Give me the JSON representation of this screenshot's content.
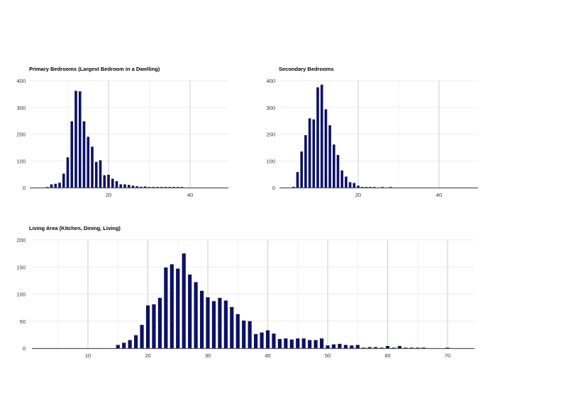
{
  "page": {
    "background": "#ffffff",
    "bar_color": "#0b1166",
    "grid_color": "#e6e6e6",
    "major_grid_color": "#cccccc",
    "axis_color": "#555555"
  },
  "chart_data": [
    {
      "id": "primary",
      "type": "bar",
      "title": "Primary Bedrooms (Largest Bedroom in a Dwelling)",
      "xlabel": "",
      "ylabel": "",
      "ylim": [
        0,
        400
      ],
      "xlim": [
        0,
        49
      ],
      "yticks": [
        0,
        100,
        200,
        300,
        400
      ],
      "xticks": [
        20,
        40
      ],
      "grid": true,
      "legend": "none",
      "x": [
        5,
        6,
        7,
        8,
        9,
        10,
        11,
        12,
        13,
        14,
        15,
        16,
        17,
        18,
        19,
        20,
        21,
        22,
        23,
        24,
        25,
        26,
        27,
        28,
        29,
        30,
        31,
        32,
        33,
        34,
        35,
        36,
        37,
        38
      ],
      "values": [
        1,
        12,
        14,
        18,
        52,
        113,
        248,
        362,
        360,
        248,
        190,
        153,
        96,
        102,
        46,
        48,
        33,
        24,
        12,
        12,
        10,
        7,
        5,
        3,
        4,
        1,
        1,
        1,
        1,
        1,
        2,
        1,
        1,
        1
      ]
    },
    {
      "id": "secondary",
      "type": "bar",
      "title": "Secondary Bedrooms",
      "xlabel": "",
      "ylabel": "",
      "ylim": [
        0,
        400
      ],
      "xlim": [
        0,
        49
      ],
      "yticks": [
        0,
        100,
        200,
        300,
        400
      ],
      "xticks": [
        20,
        40
      ],
      "grid": true,
      "legend": "none",
      "x": [
        4,
        5,
        6,
        7,
        8,
        9,
        10,
        11,
        12,
        13,
        14,
        15,
        16,
        17,
        18,
        19,
        20,
        21,
        22,
        23,
        24,
        26,
        28
      ],
      "values": [
        3,
        58,
        135,
        196,
        259,
        255,
        375,
        385,
        293,
        233,
        161,
        122,
        64,
        41,
        20,
        17,
        7,
        2,
        2,
        2,
        1,
        1,
        1
      ]
    },
    {
      "id": "living",
      "type": "bar",
      "title": "Living Area (Kitchen, Dining, Living)",
      "xlabel": "",
      "ylabel": "",
      "ylim": [
        0,
        200
      ],
      "xlim": [
        1,
        75
      ],
      "yticks": [
        0,
        50,
        100,
        150,
        200
      ],
      "xticks": [
        10,
        20,
        30,
        40,
        50,
        60,
        70
      ],
      "grid": true,
      "legend": "none",
      "x": [
        15,
        16,
        17,
        18,
        19,
        20,
        21,
        22,
        23,
        24,
        25,
        26,
        27,
        28,
        29,
        30,
        31,
        32,
        33,
        34,
        35,
        36,
        37,
        38,
        39,
        40,
        41,
        42,
        43,
        44,
        45,
        46,
        47,
        48,
        49,
        50,
        51,
        52,
        53,
        54,
        55,
        56,
        57,
        58,
        59,
        60,
        61,
        62,
        63,
        64,
        65,
        66,
        70
      ],
      "values": [
        6,
        10,
        15,
        24,
        43,
        79,
        81,
        93,
        149,
        155,
        147,
        175,
        136,
        122,
        106,
        94,
        87,
        93,
        88,
        76,
        63,
        51,
        50,
        26,
        29,
        33,
        27,
        17,
        18,
        16,
        18,
        18,
        15,
        15,
        18,
        5,
        7,
        8,
        6,
        5,
        6,
        1,
        2,
        2,
        1,
        4,
        1,
        4,
        1,
        1,
        1,
        1,
        1
      ]
    }
  ]
}
